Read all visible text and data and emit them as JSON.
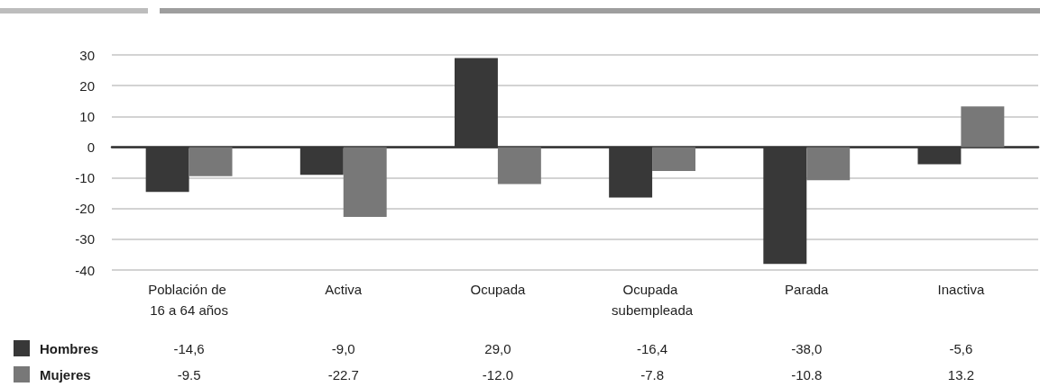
{
  "chart_data": {
    "type": "bar",
    "categories": [
      "Población de 16 a 64 años",
      "Activa",
      "Ocupada",
      "Ocupada subempleada",
      "Parada",
      "Inactiva"
    ],
    "series": [
      {
        "name": "Hombres",
        "color": "#383838",
        "values": [
          -14.6,
          -9.0,
          29.0,
          -16.4,
          -38.0,
          -5.6
        ],
        "value_labels": [
          "-14,6",
          "-9,0",
          "29,0",
          "-16,4",
          "-38,0",
          "-5,6"
        ]
      },
      {
        "name": "Mujeres",
        "color": "#787878",
        "values": [
          -9.5,
          -22.7,
          -12.0,
          -7.8,
          -10.8,
          13.2
        ],
        "value_labels": [
          "-9.5",
          "-22.7",
          "-12.0",
          "-7.8",
          "-10.8",
          "13.2"
        ]
      }
    ],
    "ylim": [
      -40,
      30
    ],
    "yticks": [
      -40,
      -30,
      -20,
      -10,
      0,
      10,
      20,
      30
    ],
    "grid": "y",
    "legend": "bottom left"
  }
}
